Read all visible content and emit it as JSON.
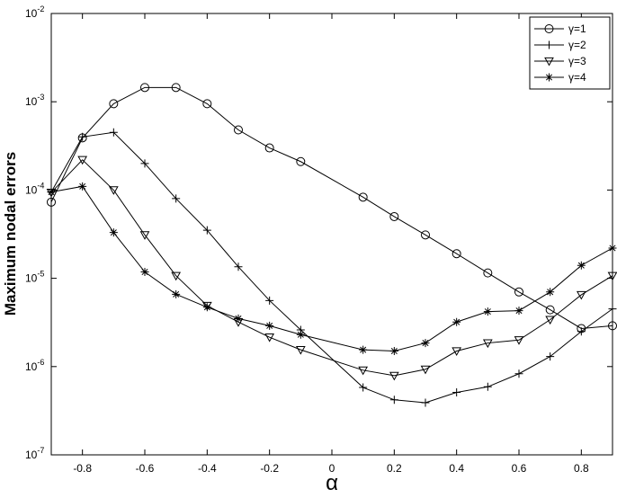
{
  "chart_data": {
    "type": "line",
    "xlabel": "α",
    "ylabel": "Maximum nodal errors",
    "x": [
      -0.9,
      -0.8,
      -0.7,
      -0.6,
      -0.5,
      -0.4,
      -0.3,
      -0.2,
      -0.1,
      0.1,
      0.2,
      0.3,
      0.4,
      0.5,
      0.6,
      0.7,
      0.8,
      0.9
    ],
    "series": [
      {
        "name": "γ=1",
        "color": "#000000",
        "marker": "circle",
        "values": [
          7.3e-05,
          0.00039,
          0.00095,
          0.00145,
          0.00145,
          0.00095,
          0.00048,
          0.0003,
          0.00021,
          8.3e-05,
          5e-05,
          3.1e-05,
          1.9e-05,
          1.15e-05,
          7e-06,
          4.4e-06,
          2.7e-06,
          2.9e-06
        ]
      },
      {
        "name": "γ=2",
        "color": "#000000",
        "marker": "plus",
        "values": [
          9.5e-05,
          0.0004,
          0.00045,
          0.0002,
          8e-05,
          3.5e-05,
          1.35e-05,
          5.6e-06,
          2.6e-06,
          5.8e-07,
          4.2e-07,
          3.9e-07,
          5.1e-07,
          5.9e-07,
          8.3e-07,
          1.3e-06,
          2.5e-06,
          4.5e-06
        ]
      },
      {
        "name": "γ=3",
        "color": "#000000",
        "marker": "triangle-down",
        "values": [
          9.4e-05,
          0.00022,
          0.0001,
          3.1e-05,
          1.07e-05,
          4.9e-06,
          3.2e-06,
          2.15e-06,
          1.55e-06,
          9.1e-07,
          7.9e-07,
          9.3e-07,
          1.5e-06,
          1.85e-06,
          2e-06,
          3.4e-06,
          6.5e-06,
          1.07e-05
        ]
      },
      {
        "name": "γ=4",
        "color": "#000000",
        "marker": "star",
        "values": [
          9.5e-05,
          0.00011,
          3.3e-05,
          1.18e-05,
          6.6e-06,
          4.7e-06,
          3.5e-06,
          2.9e-06,
          2.3e-06,
          1.55e-06,
          1.5e-06,
          1.85e-06,
          3.2e-06,
          4.2e-06,
          4.3e-06,
          7e-06,
          1.4e-05,
          2.2e-05
        ]
      }
    ],
    "xlim": [
      -0.9,
      0.9
    ],
    "xticks": [
      -0.8,
      -0.6,
      -0.4,
      -0.2,
      0,
      0.2,
      0.4,
      0.6,
      0.8
    ],
    "ylim": [
      1e-07,
      0.01
    ],
    "yscale": "log",
    "yticks": [
      {
        "value": 1e-07,
        "label": "10",
        "exponent": "-7"
      },
      {
        "value": 1e-06,
        "label": "10",
        "exponent": "-6"
      },
      {
        "value": 1e-05,
        "label": "10",
        "exponent": "-5"
      },
      {
        "value": 0.0001,
        "label": "10",
        "exponent": "-4"
      },
      {
        "value": 0.001,
        "label": "10",
        "exponent": "-3"
      },
      {
        "value": 0.01,
        "label": "10",
        "exponent": "-2"
      }
    ],
    "grid": false,
    "legend": "upper right"
  }
}
